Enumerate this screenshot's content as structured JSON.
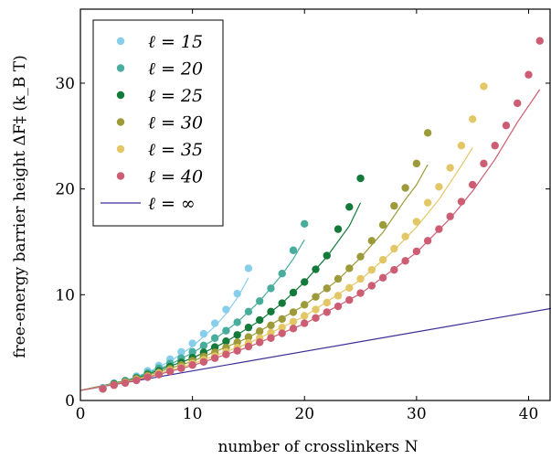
{
  "chart_data": {
    "type": "scatter",
    "xlabel": "number of crosslinkers N",
    "ylabel": "free-energy barrier height ΔF‡ (k_B T)",
    "xlim": [
      0,
      42
    ],
    "ylim": [
      0,
      37
    ],
    "xticks": [
      0,
      10,
      20,
      30,
      40
    ],
    "yticks": [
      0,
      10,
      20,
      30
    ],
    "legend_position": "top-left",
    "series": [
      {
        "name": "ℓ = 15",
        "color": "#87ceeb",
        "points": [
          [
            2,
            1.2
          ],
          [
            3,
            1.65
          ],
          [
            4,
            1.9
          ],
          [
            5,
            2.3
          ],
          [
            6,
            2.8
          ],
          [
            7,
            3.3
          ],
          [
            8,
            3.9
          ],
          [
            9,
            4.6
          ],
          [
            10,
            5.4
          ],
          [
            11,
            6.3
          ],
          [
            12,
            7.3
          ],
          [
            13,
            8.6
          ],
          [
            14,
            10.1
          ],
          [
            15,
            12.5
          ]
        ],
        "fit": [
          [
            0,
            0.95
          ],
          [
            2,
            1.3
          ],
          [
            4,
            1.85
          ],
          [
            6,
            2.65
          ],
          [
            8,
            3.7
          ],
          [
            10,
            5.1
          ],
          [
            12,
            7.0
          ],
          [
            13,
            8.2
          ],
          [
            14,
            9.7
          ],
          [
            15,
            11.6
          ]
        ]
      },
      {
        "name": "ℓ = 20",
        "color": "#48ad9c",
        "points": [
          [
            2,
            1.15
          ],
          [
            3,
            1.6
          ],
          [
            4,
            1.85
          ],
          [
            5,
            2.2
          ],
          [
            6,
            2.6
          ],
          [
            7,
            3.05
          ],
          [
            8,
            3.5
          ],
          [
            9,
            4.0
          ],
          [
            10,
            4.6
          ],
          [
            11,
            5.2
          ],
          [
            12,
            5.9
          ],
          [
            13,
            6.6
          ],
          [
            14,
            7.4
          ],
          [
            15,
            8.4
          ],
          [
            16,
            9.4
          ],
          [
            17,
            10.6
          ],
          [
            18,
            12.0
          ],
          [
            19,
            14.2
          ],
          [
            20,
            16.7
          ]
        ],
        "fit": [
          [
            0,
            0.95
          ],
          [
            4,
            1.8
          ],
          [
            8,
            3.4
          ],
          [
            10,
            4.5
          ],
          [
            12,
            5.8
          ],
          [
            14,
            7.4
          ],
          [
            16,
            9.4
          ],
          [
            18,
            11.9
          ],
          [
            19,
            13.4
          ],
          [
            20,
            15.2
          ]
        ]
      },
      {
        "name": "ℓ = 25",
        "color": "#147a3a",
        "points": [
          [
            2,
            1.1
          ],
          [
            3,
            1.55
          ],
          [
            4,
            1.8
          ],
          [
            5,
            2.1
          ],
          [
            6,
            2.45
          ],
          [
            7,
            2.8
          ],
          [
            8,
            3.2
          ],
          [
            9,
            3.6
          ],
          [
            10,
            4.05
          ],
          [
            11,
            4.55
          ],
          [
            12,
            5.05
          ],
          [
            13,
            5.6
          ],
          [
            14,
            6.2
          ],
          [
            15,
            6.9
          ],
          [
            16,
            7.6
          ],
          [
            17,
            8.4
          ],
          [
            18,
            9.2
          ],
          [
            19,
            10.2
          ],
          [
            20,
            11.2
          ],
          [
            21,
            12.4
          ],
          [
            22,
            13.7
          ],
          [
            23,
            16.2
          ],
          [
            24,
            18.3
          ],
          [
            25,
            21.0
          ]
        ],
        "fit": [
          [
            0,
            0.95
          ],
          [
            5,
            2.1
          ],
          [
            10,
            4.0
          ],
          [
            13,
            5.55
          ],
          [
            16,
            7.55
          ],
          [
            18,
            9.2
          ],
          [
            20,
            11.2
          ],
          [
            22,
            13.6
          ],
          [
            24,
            16.5
          ],
          [
            25,
            18.7
          ]
        ]
      },
      {
        "name": "ℓ = 30",
        "color": "#9d9a3a",
        "points": [
          [
            2,
            1.1
          ],
          [
            3,
            1.5
          ],
          [
            4,
            1.75
          ],
          [
            5,
            2.05
          ],
          [
            6,
            2.35
          ],
          [
            7,
            2.65
          ],
          [
            8,
            3.0
          ],
          [
            9,
            3.35
          ],
          [
            10,
            3.75
          ],
          [
            11,
            4.15
          ],
          [
            12,
            4.55
          ],
          [
            13,
            5.0
          ],
          [
            14,
            5.5
          ],
          [
            15,
            6.0
          ],
          [
            16,
            6.55
          ],
          [
            17,
            7.1
          ],
          [
            18,
            7.7
          ],
          [
            19,
            8.35
          ],
          [
            20,
            9.05
          ],
          [
            21,
            9.8
          ],
          [
            22,
            10.6
          ],
          [
            23,
            11.5
          ],
          [
            24,
            12.5
          ],
          [
            25,
            13.6
          ],
          [
            26,
            15.1
          ],
          [
            27,
            16.6
          ],
          [
            28,
            18.4
          ],
          [
            29,
            20.1
          ],
          [
            30,
            22.4
          ],
          [
            31,
            25.3
          ]
        ],
        "fit": [
          [
            0,
            0.95
          ],
          [
            5,
            2.05
          ],
          [
            10,
            3.7
          ],
          [
            15,
            5.95
          ],
          [
            20,
            9.0
          ],
          [
            23,
            11.4
          ],
          [
            25,
            13.5
          ],
          [
            27,
            15.9
          ],
          [
            29,
            19.0
          ],
          [
            30,
            20.4
          ],
          [
            31,
            22.3
          ]
        ]
      },
      {
        "name": "ℓ = 35",
        "color": "#e3c766",
        "points": [
          [
            2,
            1.1
          ],
          [
            3,
            1.45
          ],
          [
            4,
            1.7
          ],
          [
            5,
            1.95
          ],
          [
            6,
            2.25
          ],
          [
            7,
            2.55
          ],
          [
            8,
            2.85
          ],
          [
            9,
            3.15
          ],
          [
            10,
            3.5
          ],
          [
            11,
            3.85
          ],
          [
            12,
            4.2
          ],
          [
            13,
            4.6
          ],
          [
            14,
            5.0
          ],
          [
            15,
            5.45
          ],
          [
            16,
            5.9
          ],
          [
            17,
            6.4
          ],
          [
            18,
            6.9
          ],
          [
            19,
            7.45
          ],
          [
            20,
            8.0
          ],
          [
            21,
            8.6
          ],
          [
            22,
            9.25
          ],
          [
            23,
            9.9
          ],
          [
            24,
            10.65
          ],
          [
            25,
            11.5
          ],
          [
            26,
            12.35
          ],
          [
            27,
            13.3
          ],
          [
            28,
            14.35
          ],
          [
            29,
            15.5
          ],
          [
            30,
            16.9
          ],
          [
            31,
            18.7
          ],
          [
            32,
            20.2
          ],
          [
            33,
            22.0
          ],
          [
            34,
            24.1
          ],
          [
            35,
            26.6
          ],
          [
            36,
            29.7
          ]
        ],
        "fit": [
          [
            0,
            0.95
          ],
          [
            5,
            1.95
          ],
          [
            10,
            3.45
          ],
          [
            15,
            5.4
          ],
          [
            20,
            7.95
          ],
          [
            25,
            11.4
          ],
          [
            28,
            14.2
          ],
          [
            30,
            16.4
          ],
          [
            32,
            19.0
          ],
          [
            34,
            22.2
          ],
          [
            35,
            23.9
          ]
        ]
      },
      {
        "name": "ℓ = 40",
        "color": "#cc5d73",
        "points": [
          [
            2,
            1.1
          ],
          [
            3,
            1.45
          ],
          [
            4,
            1.65
          ],
          [
            5,
            1.9
          ],
          [
            6,
            2.2
          ],
          [
            7,
            2.45
          ],
          [
            8,
            2.75
          ],
          [
            9,
            3.05
          ],
          [
            10,
            3.35
          ],
          [
            11,
            3.65
          ],
          [
            12,
            4.0
          ],
          [
            13,
            4.35
          ],
          [
            14,
            4.7
          ],
          [
            15,
            5.1
          ],
          [
            16,
            5.5
          ],
          [
            17,
            5.9
          ],
          [
            18,
            6.35
          ],
          [
            19,
            6.8
          ],
          [
            20,
            7.3
          ],
          [
            21,
            7.8
          ],
          [
            22,
            8.35
          ],
          [
            23,
            8.9
          ],
          [
            24,
            9.5
          ],
          [
            25,
            10.15
          ],
          [
            26,
            10.85
          ],
          [
            27,
            11.6
          ],
          [
            28,
            12.35
          ],
          [
            29,
            13.2
          ],
          [
            30,
            14.1
          ],
          [
            31,
            15.1
          ],
          [
            32,
            16.2
          ],
          [
            33,
            17.4
          ],
          [
            34,
            18.8
          ],
          [
            35,
            20.4
          ],
          [
            36,
            22.4
          ],
          [
            37,
            24.1
          ],
          [
            38,
            26.0
          ],
          [
            39,
            28.1
          ],
          [
            40,
            30.8
          ],
          [
            41,
            34.0
          ]
        ],
        "fit": [
          [
            0,
            0.95
          ],
          [
            5,
            1.9
          ],
          [
            10,
            3.3
          ],
          [
            15,
            5.05
          ],
          [
            20,
            7.25
          ],
          [
            25,
            10.1
          ],
          [
            30,
            14.0
          ],
          [
            33,
            17.2
          ],
          [
            35,
            19.8
          ],
          [
            37,
            22.8
          ],
          [
            39,
            26.3
          ],
          [
            41,
            29.4
          ]
        ]
      }
    ],
    "limit": {
      "name": "ℓ = ∞",
      "color": "#3b2e96",
      "points": [
        [
          0,
          0.95
        ],
        [
          42,
          8.7
        ]
      ]
    }
  }
}
